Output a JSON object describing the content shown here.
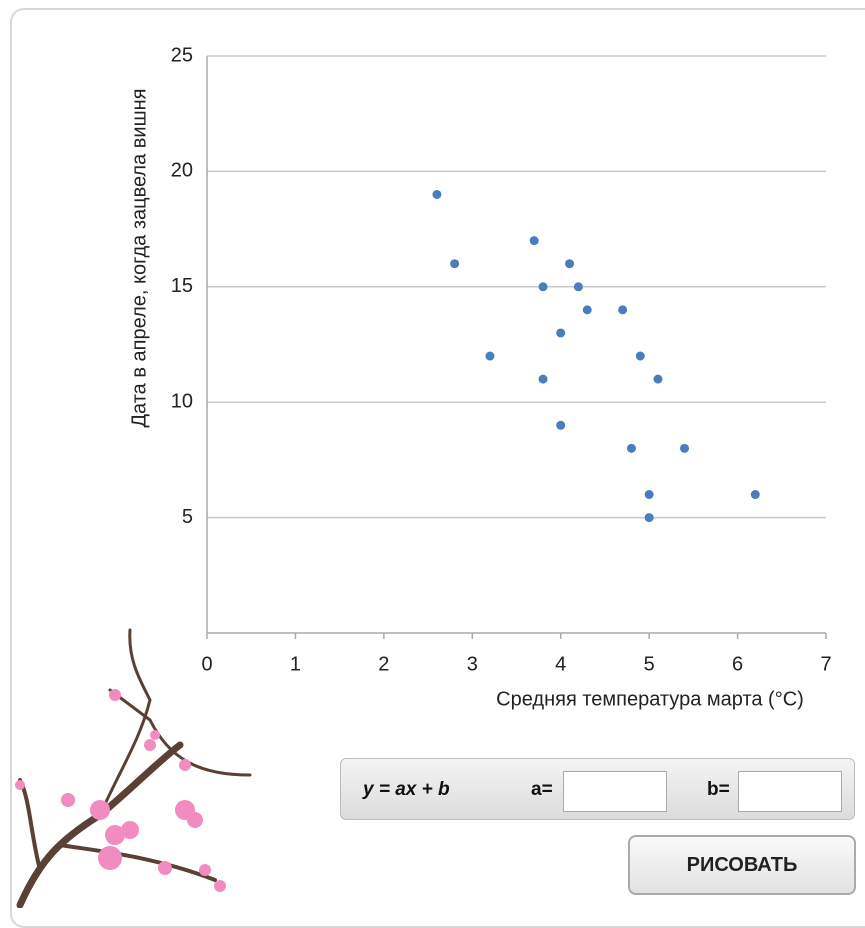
{
  "chart_data": {
    "type": "scatter",
    "xlabel": "Средняя температура марта (°C)",
    "ylabel": "Дата в апреле, когда зацвела вишня",
    "series": [
      {
        "color": "#4a7ebb",
        "x": [
          2.6,
          2.8,
          3.2,
          3.7,
          3.8,
          3.8,
          4.0,
          4.0,
          4.1,
          4.2,
          4.3,
          4.7,
          4.8,
          4.9,
          5.0,
          5.0,
          5.1,
          5.4,
          6.2
        ],
        "values": [
          19,
          16,
          12,
          17,
          15,
          11,
          13,
          9,
          16,
          15,
          14,
          14,
          8,
          12,
          6,
          5,
          11,
          8,
          6
        ]
      }
    ],
    "xlim": [
      0,
      7
    ],
    "xticks": [
      0,
      1,
      2,
      3,
      4,
      5,
      6,
      7
    ],
    "ylim": [
      0,
      25
    ],
    "yticks": [
      5,
      10,
      15,
      20,
      25
    ],
    "grid": true
  },
  "form": {
    "equation": "y = ax + b",
    "a_label": "a=",
    "b_label": "b=",
    "button": "РИСОВАТЬ"
  }
}
